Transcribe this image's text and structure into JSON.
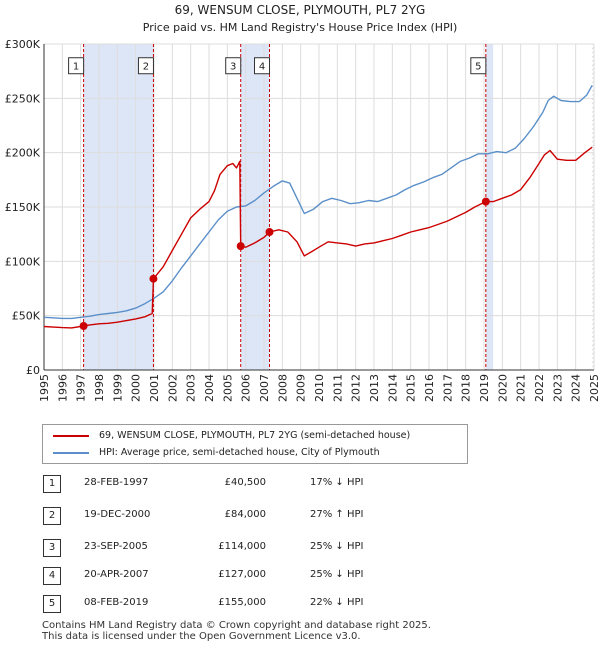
{
  "chart_data": {
    "type": "line",
    "title": "69, WENSUM CLOSE, PLYMOUTH, PL7 2YG",
    "subtitle": "Price paid vs. HM Land Registry's House Price Index (HPI)",
    "xlabel": "",
    "ylabel": "",
    "xlim": [
      1995,
      2025
    ],
    "ylim": [
      0,
      300000
    ],
    "y_ticks": [
      {
        "value": 0,
        "label": "£0"
      },
      {
        "value": 50000,
        "label": "£50K"
      },
      {
        "value": 100000,
        "label": "£100K"
      },
      {
        "value": 150000,
        "label": "£150K"
      },
      {
        "value": 200000,
        "label": "£200K"
      },
      {
        "value": 250000,
        "label": "£250K"
      },
      {
        "value": 300000,
        "label": "£300K"
      }
    ],
    "x_ticks": [
      "1995",
      "1996",
      "1997",
      "1998",
      "1999",
      "2000",
      "2001",
      "2002",
      "2003",
      "2004",
      "2005",
      "2006",
      "2007",
      "2008",
      "2009",
      "2010",
      "2011",
      "2012",
      "2013",
      "2014",
      "2015",
      "2016",
      "2017",
      "2018",
      "2019",
      "2020",
      "2021",
      "2022",
      "2023",
      "2024",
      "2025"
    ],
    "grid": true,
    "series": [
      {
        "name": "69, WENSUM CLOSE, PLYMOUTH, PL7 2YG (semi-detached house)",
        "color": "#cc0000",
        "points": [
          [
            1995.0,
            40000
          ],
          [
            1995.5,
            39500
          ],
          [
            1996.0,
            39000
          ],
          [
            1996.5,
            38700
          ],
          [
            1997.16,
            40500
          ],
          [
            1997.5,
            41500
          ],
          [
            1998.0,
            42500
          ],
          [
            1998.5,
            43000
          ],
          [
            1999.0,
            44000
          ],
          [
            1999.5,
            45500
          ],
          [
            2000.0,
            47000
          ],
          [
            2000.5,
            49000
          ],
          [
            2000.9,
            52000
          ],
          [
            2000.97,
            84000
          ],
          [
            2001.5,
            95000
          ],
          [
            2002.0,
            110000
          ],
          [
            2002.5,
            125000
          ],
          [
            2003.0,
            140000
          ],
          [
            2003.5,
            148000
          ],
          [
            2004.0,
            155000
          ],
          [
            2004.3,
            165000
          ],
          [
            2004.6,
            180000
          ],
          [
            2005.0,
            188000
          ],
          [
            2005.3,
            190000
          ],
          [
            2005.5,
            186000
          ],
          [
            2005.68,
            192000
          ],
          [
            2005.73,
            114000
          ],
          [
            2006.0,
            113000
          ],
          [
            2006.5,
            117000
          ],
          [
            2007.0,
            122000
          ],
          [
            2007.3,
            127000
          ],
          [
            2007.8,
            129000
          ],
          [
            2008.3,
            127000
          ],
          [
            2008.8,
            118000
          ],
          [
            2009.2,
            105000
          ],
          [
            2009.6,
            109000
          ],
          [
            2010.0,
            113000
          ],
          [
            2010.5,
            118000
          ],
          [
            2011.0,
            117000
          ],
          [
            2011.5,
            116000
          ],
          [
            2012.0,
            114000
          ],
          [
            2012.5,
            116000
          ],
          [
            2013.0,
            117000
          ],
          [
            2013.5,
            119000
          ],
          [
            2014.0,
            121000
          ],
          [
            2014.5,
            124000
          ],
          [
            2015.0,
            127000
          ],
          [
            2015.5,
            129000
          ],
          [
            2016.0,
            131000
          ],
          [
            2016.5,
            134000
          ],
          [
            2017.0,
            137000
          ],
          [
            2017.5,
            141000
          ],
          [
            2018.0,
            145000
          ],
          [
            2018.5,
            150000
          ],
          [
            2019.1,
            155000
          ],
          [
            2019.5,
            155000
          ],
          [
            2020.0,
            158000
          ],
          [
            2020.5,
            161000
          ],
          [
            2021.0,
            166000
          ],
          [
            2021.5,
            177000
          ],
          [
            2022.0,
            190000
          ],
          [
            2022.3,
            198000
          ],
          [
            2022.6,
            202000
          ],
          [
            2023.0,
            194000
          ],
          [
            2023.5,
            193000
          ],
          [
            2024.0,
            193000
          ],
          [
            2024.5,
            200000
          ],
          [
            2024.9,
            205000
          ]
        ]
      },
      {
        "name": "HPI: Average price, semi-detached house, City of Plymouth",
        "color": "#5b8fc9",
        "points": [
          [
            1995.0,
            48500
          ],
          [
            1995.5,
            48000
          ],
          [
            1996.0,
            47500
          ],
          [
            1996.5,
            47500
          ],
          [
            1997.0,
            48500
          ],
          [
            1997.5,
            49500
          ],
          [
            1998.0,
            51000
          ],
          [
            1998.5,
            52000
          ],
          [
            1999.0,
            53000
          ],
          [
            1999.5,
            54500
          ],
          [
            2000.0,
            57000
          ],
          [
            2000.5,
            61000
          ],
          [
            2001.0,
            66000
          ],
          [
            2001.5,
            72000
          ],
          [
            2002.0,
            82000
          ],
          [
            2002.5,
            94000
          ],
          [
            2003.0,
            105000
          ],
          [
            2003.5,
            116000
          ],
          [
            2004.0,
            127000
          ],
          [
            2004.5,
            138000
          ],
          [
            2005.0,
            146000
          ],
          [
            2005.5,
            150000
          ],
          [
            2006.0,
            151000
          ],
          [
            2006.5,
            156000
          ],
          [
            2007.0,
            163000
          ],
          [
            2007.5,
            169000
          ],
          [
            2008.0,
            174000
          ],
          [
            2008.4,
            172000
          ],
          [
            2008.8,
            158000
          ],
          [
            2009.2,
            144000
          ],
          [
            2009.7,
            148000
          ],
          [
            2010.2,
            155000
          ],
          [
            2010.7,
            158000
          ],
          [
            2011.2,
            156000
          ],
          [
            2011.7,
            153000
          ],
          [
            2012.2,
            154000
          ],
          [
            2012.7,
            156000
          ],
          [
            2013.2,
            155000
          ],
          [
            2013.7,
            158000
          ],
          [
            2014.2,
            161000
          ],
          [
            2014.7,
            166000
          ],
          [
            2015.2,
            170000
          ],
          [
            2015.7,
            173000
          ],
          [
            2016.2,
            177000
          ],
          [
            2016.7,
            180000
          ],
          [
            2017.2,
            186000
          ],
          [
            2017.7,
            192000
          ],
          [
            2018.2,
            195000
          ],
          [
            2018.7,
            199000
          ],
          [
            2019.2,
            199000
          ],
          [
            2019.7,
            201000
          ],
          [
            2020.2,
            200000
          ],
          [
            2020.7,
            204000
          ],
          [
            2021.2,
            213000
          ],
          [
            2021.7,
            224000
          ],
          [
            2022.2,
            237000
          ],
          [
            2022.5,
            248000
          ],
          [
            2022.8,
            252000
          ],
          [
            2023.2,
            248000
          ],
          [
            2023.7,
            247000
          ],
          [
            2024.2,
            247000
          ],
          [
            2024.6,
            253000
          ],
          [
            2024.9,
            262000
          ]
        ]
      }
    ],
    "sales": [
      {
        "n": "1",
        "x": 1997.16,
        "price": 40500,
        "label_y": 280000,
        "band_to": 2000.97
      },
      {
        "n": "2",
        "x": 2000.97,
        "price": 84000,
        "label_y": 280000,
        "band_to": null
      },
      {
        "n": "3",
        "x": 2005.73,
        "price": 114000,
        "label_y": 280000,
        "band_to": 2007.3
      },
      {
        "n": "4",
        "x": 2007.3,
        "price": 127000,
        "label_y": 280000,
        "band_to": null
      },
      {
        "n": "5",
        "x": 2019.1,
        "price": 155000,
        "label_y": 280000,
        "band_to": 2019.5
      }
    ],
    "hatched_from": 2024.9,
    "colors": {
      "band": "#dde6f7",
      "vline": "#cc0000",
      "grid": "#dddddd",
      "axis": "#333333"
    }
  },
  "legend": {
    "items": [
      {
        "label": "69, WENSUM CLOSE, PLYMOUTH, PL7 2YG (semi-detached house)",
        "color": "#cc0000"
      },
      {
        "label": "HPI: Average price, semi-detached house, City of Plymouth",
        "color": "#5b8fc9"
      }
    ]
  },
  "sales_table": [
    {
      "n": "1",
      "date": "28-FEB-1997",
      "price": "£40,500",
      "hpi": "17% ↓ HPI"
    },
    {
      "n": "2",
      "date": "19-DEC-2000",
      "price": "£84,000",
      "hpi": "27% ↑ HPI"
    },
    {
      "n": "3",
      "date": "23-SEP-2005",
      "price": "£114,000",
      "hpi": "25% ↓ HPI"
    },
    {
      "n": "4",
      "date": "20-APR-2007",
      "price": "£127,000",
      "hpi": "25% ↓ HPI"
    },
    {
      "n": "5",
      "date": "08-FEB-2019",
      "price": "£155,000",
      "hpi": "22% ↓ HPI"
    }
  ],
  "footer": {
    "line1": "Contains HM Land Registry data © Crown copyright and database right 2025.",
    "line2": "This data is licensed under the Open Government Licence v3.0."
  }
}
